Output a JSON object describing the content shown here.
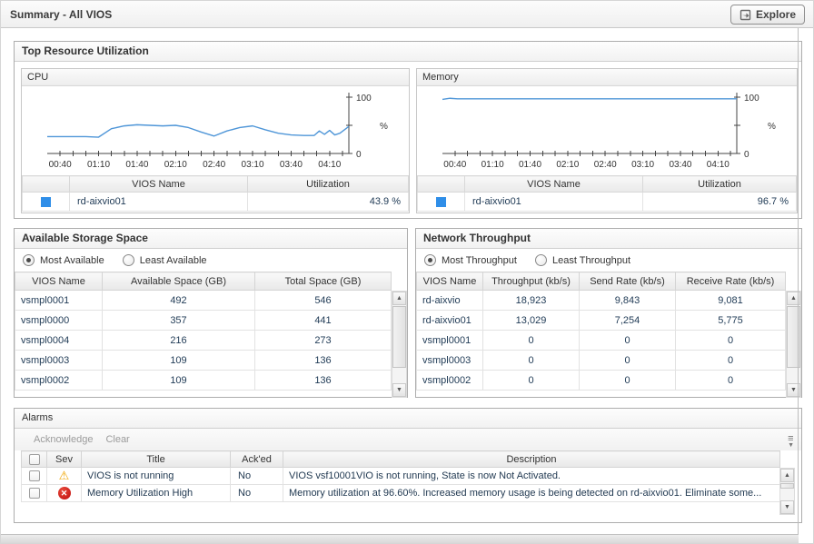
{
  "header": {
    "title": "Summary - All VIOS",
    "explore_label": "Explore"
  },
  "colors": {
    "accent_blue": "#2f8ee8",
    "chart_line": "#4f96d8",
    "warning": "#f0a500",
    "error": "#c00d0d"
  },
  "panels": {
    "top_resource": {
      "title": "Top Resource Utilization",
      "cpu": {
        "title": "CPU",
        "columns": [
          "VIOS Name",
          "Utilization"
        ],
        "row": {
          "name": "rd-aixvio01",
          "utilization": "43.9 %"
        }
      },
      "memory": {
        "title": "Memory",
        "columns": [
          "VIOS Name",
          "Utilization"
        ],
        "row": {
          "name": "rd-aixvio01",
          "utilization": "96.7 %"
        }
      }
    },
    "storage": {
      "title": "Available Storage Space",
      "radios": [
        {
          "label": "Most Available",
          "selected": true
        },
        {
          "label": "Least Available",
          "selected": false
        }
      ],
      "columns": [
        "VIOS Name",
        "Available Space (GB)",
        "Total Space (GB)"
      ],
      "rows": [
        [
          "vsmpl0001",
          "492",
          "546"
        ],
        [
          "vsmpl0000",
          "357",
          "441"
        ],
        [
          "vsmpl0004",
          "216",
          "273"
        ],
        [
          "vsmpl0003",
          "109",
          "136"
        ],
        [
          "vsmpl0002",
          "109",
          "136"
        ]
      ]
    },
    "network": {
      "title": "Network Throughput",
      "radios": [
        {
          "label": "Most Throughput",
          "selected": true
        },
        {
          "label": "Least Throughput",
          "selected": false
        }
      ],
      "columns": [
        "VIOS Name",
        "Throughput (kb/s)",
        "Send Rate (kb/s)",
        "Receive Rate (kb/s)"
      ],
      "rows": [
        [
          "rd-aixvio",
          "18,923",
          "9,843",
          "9,081"
        ],
        [
          "rd-aixvio01",
          "13,029",
          "7,254",
          "5,775"
        ],
        [
          "vsmpl0001",
          "0",
          "0",
          "0"
        ],
        [
          "vsmpl0003",
          "0",
          "0",
          "0"
        ],
        [
          "vsmpl0002",
          "0",
          "0",
          "0"
        ]
      ]
    },
    "alarms": {
      "title": "Alarms",
      "toolbar": {
        "acknowledge": "Acknowledge",
        "clear": "Clear"
      },
      "columns": {
        "sev": "Sev",
        "title": "Title",
        "acked": "Ack'ed",
        "description": "Description"
      },
      "rows": [
        {
          "severity": "warning",
          "title": "VIOS is not running",
          "acked": "No",
          "description": "VIOS vsf10001VIO is not running, State is now Not Activated."
        },
        {
          "severity": "error",
          "title": "Memory Utilization High",
          "acked": "No",
          "description": "Memory utilization at 96.60%. Increased memory usage is being detected on rd-aixvio01. Eliminate some..."
        }
      ]
    }
  },
  "chart_data": [
    {
      "type": "line",
      "title": "CPU",
      "ylabel": "%",
      "ylim": [
        0,
        100
      ],
      "y_tick_labels": [
        "0",
        "100"
      ],
      "x_tick_minutes": [
        40,
        70,
        100,
        130,
        160,
        190,
        220,
        250
      ],
      "x_tick_labels": [
        "00:40",
        "01:10",
        "01:40",
        "02:10",
        "02:40",
        "03:10",
        "03:40",
        "04:10"
      ],
      "x_range_minutes": [
        30,
        265
      ],
      "grid": false,
      "legend_position": "table-below",
      "series": [
        {
          "name": "rd-aixvio01",
          "color": "#4f96d8",
          "x": [
            30,
            40,
            50,
            60,
            70,
            80,
            90,
            100,
            110,
            120,
            130,
            140,
            150,
            160,
            170,
            180,
            190,
            200,
            210,
            220,
            230,
            238,
            242,
            246,
            250,
            254,
            258,
            265
          ],
          "values": [
            30,
            30,
            30,
            30,
            29,
            44,
            49,
            51,
            50,
            49,
            50,
            46,
            38,
            31,
            40,
            46,
            49,
            42,
            36,
            33,
            32,
            32,
            40,
            34,
            41,
            33,
            36,
            48
          ]
        }
      ]
    },
    {
      "type": "line",
      "title": "Memory",
      "ylabel": "%",
      "ylim": [
        0,
        100
      ],
      "y_tick_labels": [
        "0",
        "100"
      ],
      "x_tick_minutes": [
        40,
        70,
        100,
        130,
        160,
        190,
        220,
        250
      ],
      "x_tick_labels": [
        "00:40",
        "01:10",
        "01:40",
        "02:10",
        "02:40",
        "03:10",
        "03:40",
        "04:10"
      ],
      "x_range_minutes": [
        30,
        265
      ],
      "grid": false,
      "legend_position": "table-below",
      "series": [
        {
          "name": "rd-aixvio01",
          "color": "#4f96d8",
          "x": [
            30,
            36,
            42,
            60,
            100,
            150,
            200,
            250,
            265
          ],
          "values": [
            96,
            98,
            97,
            97,
            97,
            97,
            97,
            97,
            97
          ]
        }
      ]
    }
  ]
}
